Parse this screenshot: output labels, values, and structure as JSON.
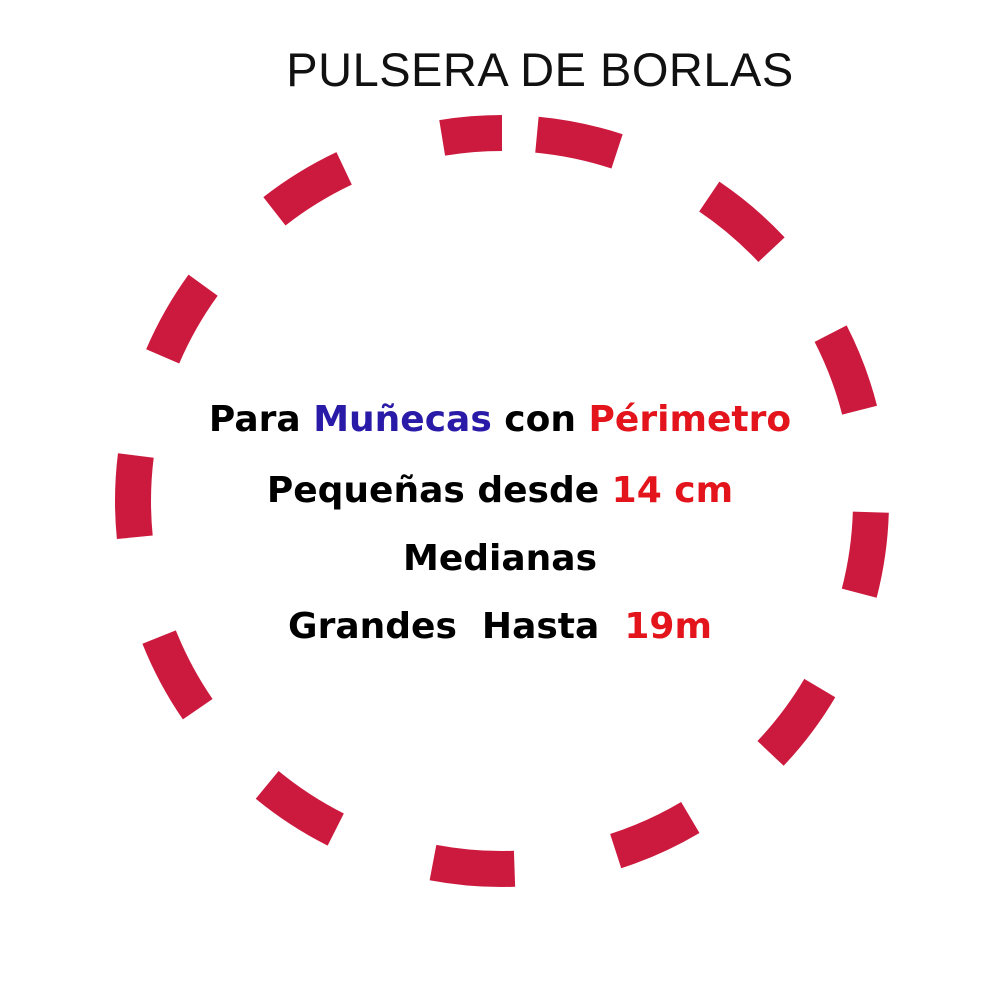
{
  "title": "PULSERA DE BORLAS",
  "colors": {
    "ring": "#cc1a3e",
    "highlight_blue": "#2a1aa8",
    "highlight_red": "#e3141c",
    "text": "#000000"
  },
  "lines": {
    "line1": {
      "part1": "Para ",
      "part2": "Muñecas",
      "part3": " con ",
      "part4": "Périmetro"
    },
    "line2": {
      "part1": "Pequeñas desde ",
      "part2": "14 cm"
    },
    "line3": {
      "part1": "Medianas"
    },
    "line4": {
      "part1": "Grandes  Hasta  ",
      "part2": "19m"
    }
  }
}
